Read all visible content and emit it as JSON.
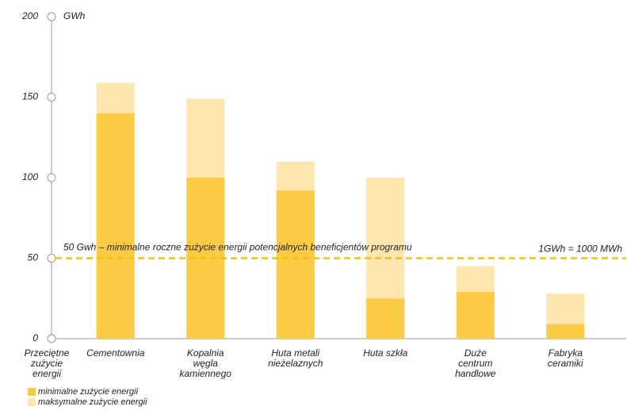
{
  "chart_data": {
    "type": "bar",
    "y_unit": "GWh",
    "x_label": "Przeciętne\nzużycie\nenergii",
    "categories": [
      "Cementownia",
      "Kopalnia\nwęgla\nkamiennego",
      "Huta metali\nnieżelaznych",
      "Huta szkła",
      "Duże\ncentrum\nhandlowe",
      "Fabryka\nceramiki"
    ],
    "series": [
      {
        "name": "minimalne zużycie energii",
        "color": "#fccb45",
        "values": [
          140,
          100,
          92,
          25,
          29,
          9
        ]
      },
      {
        "name": "maksymalne zużycie energii",
        "color": "#fde6b0",
        "values": [
          159,
          149,
          110,
          100,
          45,
          28
        ]
      }
    ],
    "reference_line": {
      "value": 50,
      "label": "50 Gwh – minimalne roczne zużycie energii potencjalnych beneficjentów programu",
      "note": "1GWh = 1000 MWh",
      "color": "#f5c200"
    },
    "ylim": [
      0,
      200
    ],
    "yticks": [
      0,
      50,
      100,
      150,
      200
    ],
    "legend": "bottom-left"
  }
}
